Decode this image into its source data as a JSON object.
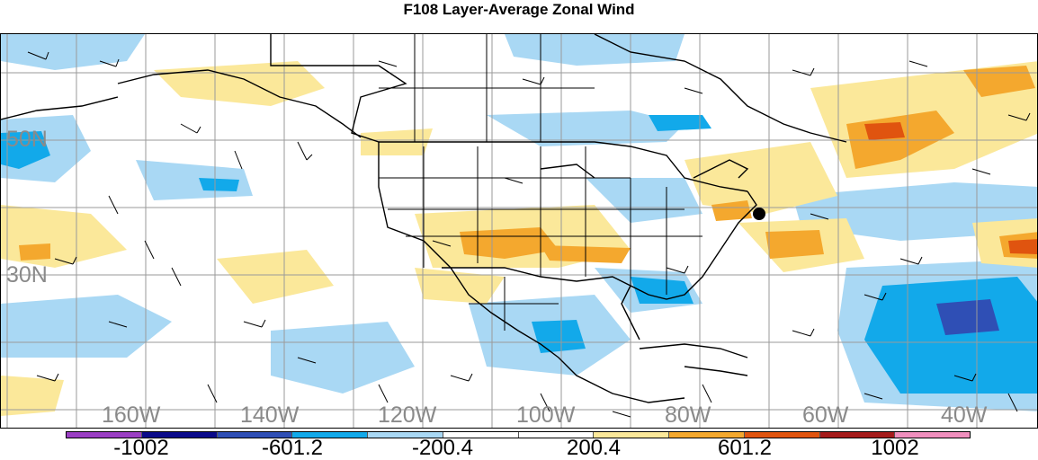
{
  "title": "F108 Layer-Average Zonal Wind",
  "map": {
    "lat_labels": [
      "50N",
      "30N"
    ],
    "lon_labels": [
      "160W",
      "140W",
      "120W",
      "100W",
      "80W",
      "60W",
      "40W"
    ],
    "grid_color": "#9a9a9a",
    "boundary_color": "#000000",
    "marker": "station-dot"
  },
  "colorbar": {
    "colors": [
      "#9b3fc4",
      "#0a0a8a",
      "#2f4fb5",
      "#12a9ea",
      "#a9d8f4",
      "#ffffff",
      "#ffffff",
      "#fbe89a",
      "#f4a82e",
      "#e0540f",
      "#a51b1b",
      "#f08fbe"
    ],
    "labels": [
      "-1002",
      "-601.2",
      "-200.4",
      "200.4",
      "601.2",
      "1002"
    ]
  }
}
